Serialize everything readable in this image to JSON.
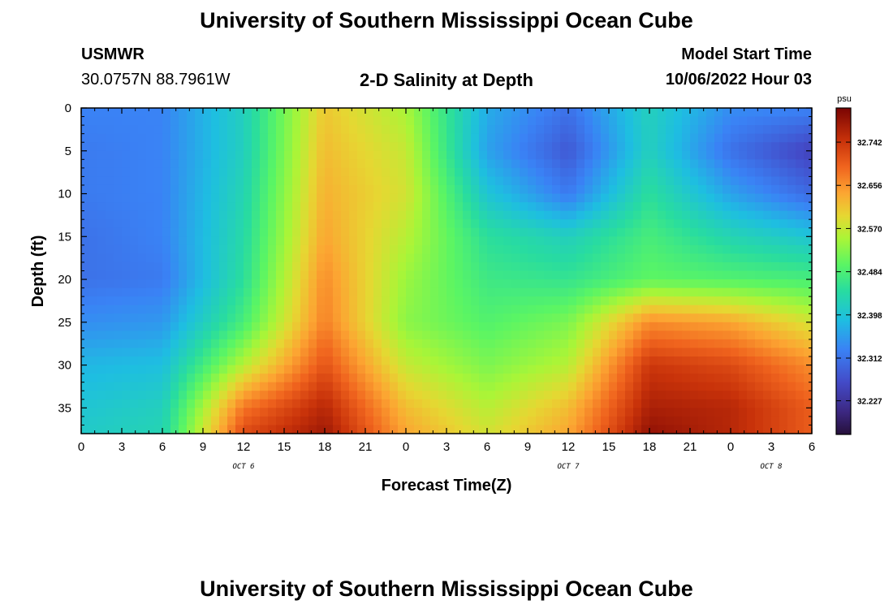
{
  "page": {
    "title": "University of Southern Mississippi Ocean Cube",
    "bottom_title": "University of Southern Mississippi Ocean Cube",
    "station": "USMWR",
    "location": "30.0757N  88.7961W",
    "plot_title": "2-D Salinity at Depth",
    "model_start_label": "Model Start Time",
    "model_start_value": "10/06/2022 Hour 03"
  },
  "chart_data": {
    "type": "heatmap",
    "title": "2-D Salinity at Depth",
    "xlabel": "Forecast Time(Z)",
    "ylabel": "Depth (ft)",
    "x_ticks": [
      "0",
      "3",
      "6",
      "9",
      "12",
      "15",
      "18",
      "21",
      "0",
      "3",
      "6",
      "9",
      "12",
      "15",
      "18",
      "21",
      "0",
      "3",
      "6"
    ],
    "x_dates": [
      {
        "label": "OCT 6",
        "at_hour": 12
      },
      {
        "label": "OCT 7",
        "at_hour": 36
      },
      {
        "label": "OCT 8",
        "at_hour": 51
      }
    ],
    "x_range_hours": [
      0,
      54
    ],
    "y_ticks": [
      0,
      5,
      10,
      15,
      20,
      25,
      30,
      35
    ],
    "ylim": [
      0,
      38
    ],
    "y_inverted": true,
    "colorbar": {
      "unit": "psu",
      "range": [
        32.16,
        32.81
      ],
      "ticks": [
        32.227,
        32.312,
        32.398,
        32.484,
        32.57,
        32.656,
        32.742
      ],
      "tick_labels": [
        "32.227",
        "32.312",
        "32.398",
        "32.484",
        "32.570",
        "32.656",
        "32.742"
      ]
    },
    "grid": {
      "hours": [
        0,
        6,
        12,
        18,
        24,
        30,
        36,
        42,
        48,
        54
      ],
      "depths": [
        0,
        5,
        10,
        15,
        20,
        25,
        30,
        35,
        38
      ],
      "salinity": [
        [
          32.33,
          32.33,
          32.42,
          32.61,
          32.55,
          32.37,
          32.31,
          32.42,
          32.34,
          32.33
        ],
        [
          32.32,
          32.33,
          32.42,
          32.62,
          32.57,
          32.36,
          32.28,
          32.42,
          32.31,
          32.25
        ],
        [
          32.32,
          32.33,
          32.43,
          32.63,
          32.58,
          32.4,
          32.32,
          32.45,
          32.36,
          32.3
        ],
        [
          32.31,
          32.33,
          32.44,
          32.64,
          32.56,
          32.45,
          32.42,
          32.48,
          32.43,
          32.4
        ],
        [
          32.31,
          32.32,
          32.45,
          32.66,
          32.54,
          32.47,
          32.46,
          32.5,
          32.49,
          32.48
        ],
        [
          32.34,
          32.35,
          32.48,
          32.67,
          32.53,
          32.49,
          32.52,
          32.66,
          32.64,
          32.58
        ],
        [
          32.38,
          32.39,
          32.56,
          32.71,
          32.57,
          32.52,
          32.56,
          32.74,
          32.72,
          32.66
        ],
        [
          32.4,
          32.42,
          32.68,
          32.76,
          32.62,
          32.56,
          32.62,
          32.77,
          32.76,
          32.7
        ],
        [
          32.41,
          32.43,
          32.72,
          32.78,
          32.64,
          32.58,
          32.64,
          32.79,
          32.76,
          32.7
        ]
      ]
    }
  }
}
